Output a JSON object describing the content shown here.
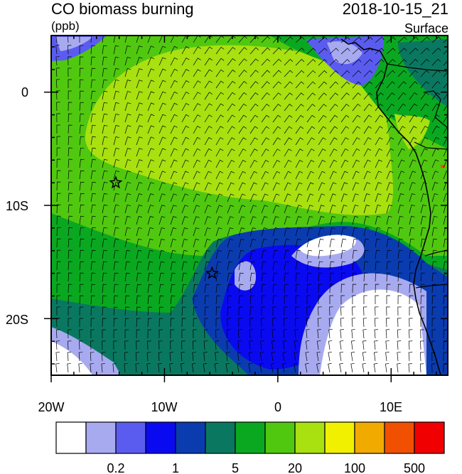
{
  "header": {
    "title": "CO biomass burning",
    "datetime": "2018-10-15_21",
    "units": "(ppb)",
    "level": "Surface"
  },
  "map": {
    "lon_range": [
      -20,
      15
    ],
    "lat_range": [
      -25,
      5
    ],
    "lon_ticks": [
      {
        "value": -20,
        "label": "20W"
      },
      {
        "value": -10,
        "label": "10W"
      },
      {
        "value": 0,
        "label": "0"
      },
      {
        "value": 10,
        "label": "10E"
      }
    ],
    "lat_ticks": [
      {
        "value": 0,
        "label": "0"
      },
      {
        "value": -10,
        "label": "10S"
      },
      {
        "value": -20,
        "label": "20S"
      }
    ],
    "markers": [
      {
        "name": "star-marker-west",
        "lon": -14.3,
        "lat": -8.0
      },
      {
        "name": "star-marker-south",
        "lon": -5.8,
        "lat": -16.0
      }
    ]
  },
  "colorbar": {
    "colors": [
      "#ffffff",
      "#a8aaf0",
      "#5a5cf0",
      "#0a0af0",
      "#0a3cb0",
      "#0a7860",
      "#0aa820",
      "#50c810",
      "#a8e010",
      "#f0f000",
      "#f0aa00",
      "#f05000",
      "#f00000"
    ],
    "labels": [
      "0.2",
      "1",
      "5",
      "20",
      "100",
      "500"
    ]
  },
  "palette": {
    "ocean_green": "#50c810",
    "light_green": "#a8e010",
    "teal": "#0a7860",
    "dark_green": "#0aa820",
    "navy": "#0a3cb0",
    "blue": "#0a0af0",
    "lavender": "#a8aaf0",
    "white": "#ffffff"
  }
}
